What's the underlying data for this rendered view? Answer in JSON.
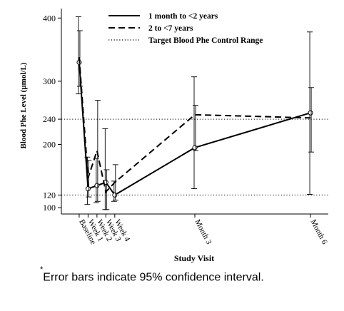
{
  "chart_data": {
    "type": "line",
    "xlabel": "Study Visit",
    "ylabel": "Blood Phe Level (µmol/L)",
    "x_ticks": [
      {
        "label": "Baseline",
        "week": 0
      },
      {
        "label": "Week 1",
        "week": 1
      },
      {
        "label": "Week 2",
        "week": 2
      },
      {
        "label": "Week 3",
        "week": 3
      },
      {
        "label": "Week 4",
        "week": 4
      },
      {
        "label": "Month 3",
        "week": 13
      },
      {
        "label": "Month 6",
        "week": 26
      }
    ],
    "xlim_weeks": [
      -2,
      28
    ],
    "y_ticks": [
      100,
      120,
      200,
      240,
      300,
      400
    ],
    "ylim": [
      90,
      415
    ],
    "reference_lines": [
      {
        "y": 120,
        "style": "dotted"
      },
      {
        "y": 240,
        "style": "dotted"
      }
    ],
    "series": [
      {
        "name": "1 month to <2 years",
        "style": "solid",
        "x": [
          0,
          1,
          2,
          3,
          4,
          13,
          26
        ],
        "y": [
          330,
          130,
          135,
          140,
          120,
          195,
          250
        ],
        "ci_low": [
          280,
          105,
          108,
          97,
          110,
          130,
          121
        ],
        "ci_high": [
          402,
          180,
          178,
          225,
          142,
          307,
          378
        ]
      },
      {
        "name": "2 to <7 years",
        "style": "dashed",
        "x": [
          0,
          1,
          2,
          3,
          4,
          13,
          26
        ],
        "y": [
          338,
          147,
          190,
          125,
          140,
          247,
          242
        ],
        "ci_low": [
          292,
          117,
          110,
          97,
          112,
          190,
          188
        ],
        "ci_high": [
          380,
          175,
          270,
          160,
          168,
          262,
          290
        ]
      },
      {
        "name": "Target Blood Phe Control Range",
        "style": "dotted"
      }
    ]
  },
  "footnote": {
    "marker": "*",
    "text": "Error bars indicate 95% confidence interval."
  }
}
